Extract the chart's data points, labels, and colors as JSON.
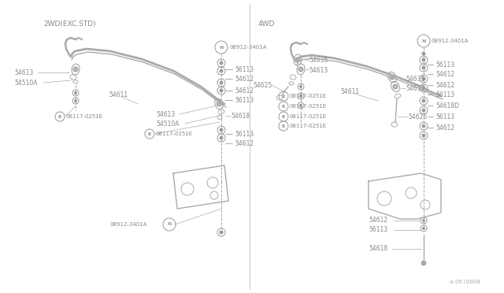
{
  "bg_color": "#ffffff",
  "line_color": "#aaaaaa",
  "text_color": "#aaaaaa",
  "dark_line": "#888888",
  "title_2wd": "2WD(EXC.STD)",
  "title_4wd": "4WD",
  "watermark": "A·06 i 0008"
}
